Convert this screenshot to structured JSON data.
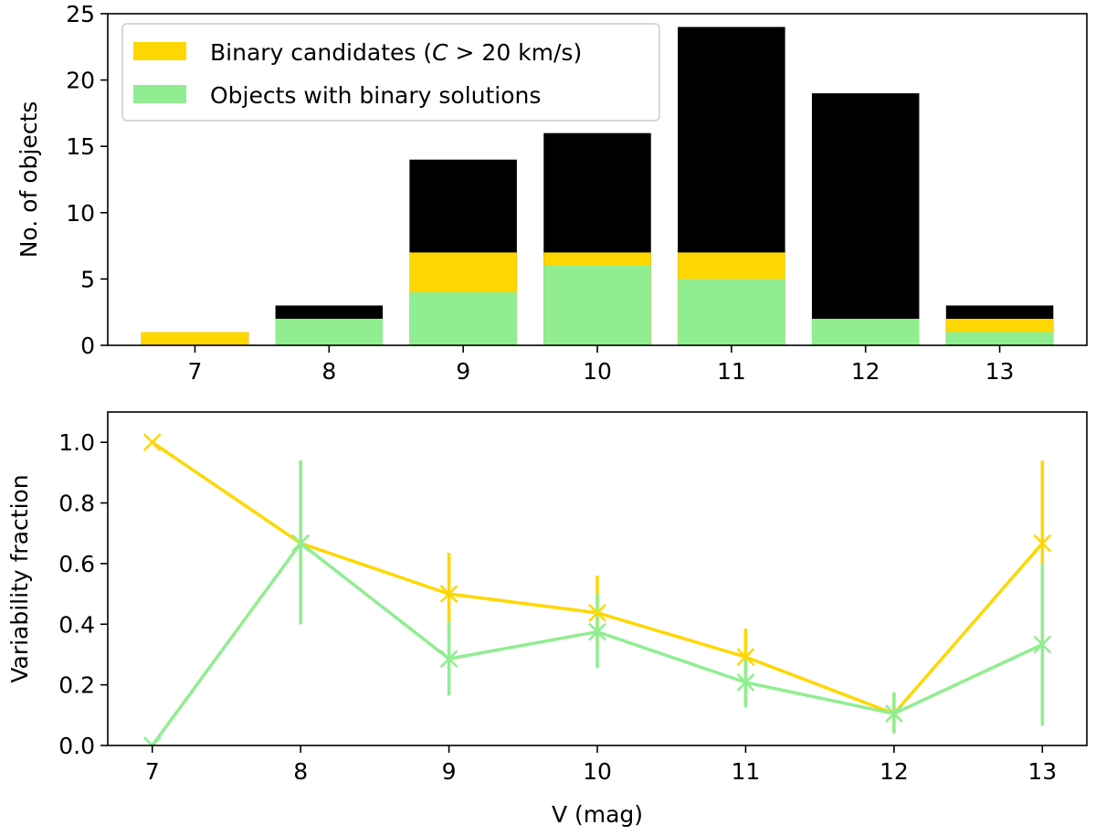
{
  "chart_data": [
    {
      "type": "bar",
      "stacked": "overlay",
      "categories": [
        "7",
        "8",
        "9",
        "10",
        "11",
        "12",
        "13"
      ],
      "x": [
        7,
        8,
        9,
        10,
        11,
        12,
        13
      ],
      "series": [
        {
          "name": "",
          "color": "#000000",
          "values": [
            1,
            3,
            14,
            16,
            24,
            19,
            3
          ]
        },
        {
          "name": "Binary candidates (C > 20 km/s)",
          "color": "#ffd700",
          "values": [
            1,
            2,
            7,
            7,
            7,
            2,
            2
          ]
        },
        {
          "name": "Objects with binary solutions",
          "color": "#90ee90",
          "values": [
            0,
            2,
            4,
            6,
            5,
            2,
            1
          ]
        }
      ],
      "xlabel": "",
      "ylabel": "No. of objects",
      "ylim": [
        0,
        25
      ],
      "xlim": [
        6.35,
        13.65
      ],
      "yticks": [
        "0",
        "5",
        "10",
        "15",
        "20",
        "25"
      ],
      "legend": {
        "placement": "upper-left",
        "entries": [
          {
            "name": "Binary candidates (",
            "italic": "C",
            "suffix": " > 20 km/s)",
            "color": "#ffd700"
          },
          {
            "name": "Objects with binary solutions",
            "color": "#90ee90"
          }
        ]
      },
      "grid": false
    },
    {
      "type": "line",
      "x": [
        7,
        8,
        9,
        10,
        11,
        12,
        13
      ],
      "series": [
        {
          "name": "Binary candidates",
          "color": "#ffd700",
          "values": [
            1.0,
            0.667,
            0.5,
            0.4375,
            0.292,
            0.105,
            0.667
          ],
          "err_low": [
            1.0,
            0.4,
            0.36,
            0.325,
            0.2,
            0.04,
            0.4
          ],
          "err_high": [
            1.0,
            0.94,
            0.635,
            0.56,
            0.385,
            0.175,
            0.94
          ]
        },
        {
          "name": "Objects with binary solutions",
          "color": "#90ee90",
          "values": [
            0.0,
            0.667,
            0.286,
            0.375,
            0.208,
            0.105,
            0.333
          ],
          "err_low": [
            0.0,
            0.4,
            0.165,
            0.255,
            0.125,
            0.04,
            0.065
          ],
          "err_high": [
            0.0,
            0.94,
            0.41,
            0.5,
            0.29,
            0.175,
            0.6
          ]
        }
      ],
      "xlabel": "V (mag)",
      "ylabel": "Variability fraction",
      "ylim": [
        0.0,
        1.1
      ],
      "xlim": [
        6.7,
        13.3
      ],
      "yticks": [
        "0.0",
        "0.2",
        "0.4",
        "0.6",
        "0.8",
        "1.0"
      ],
      "xticks": [
        "7",
        "8",
        "9",
        "10",
        "11",
        "12",
        "13"
      ],
      "marker": "x",
      "grid": false
    }
  ]
}
